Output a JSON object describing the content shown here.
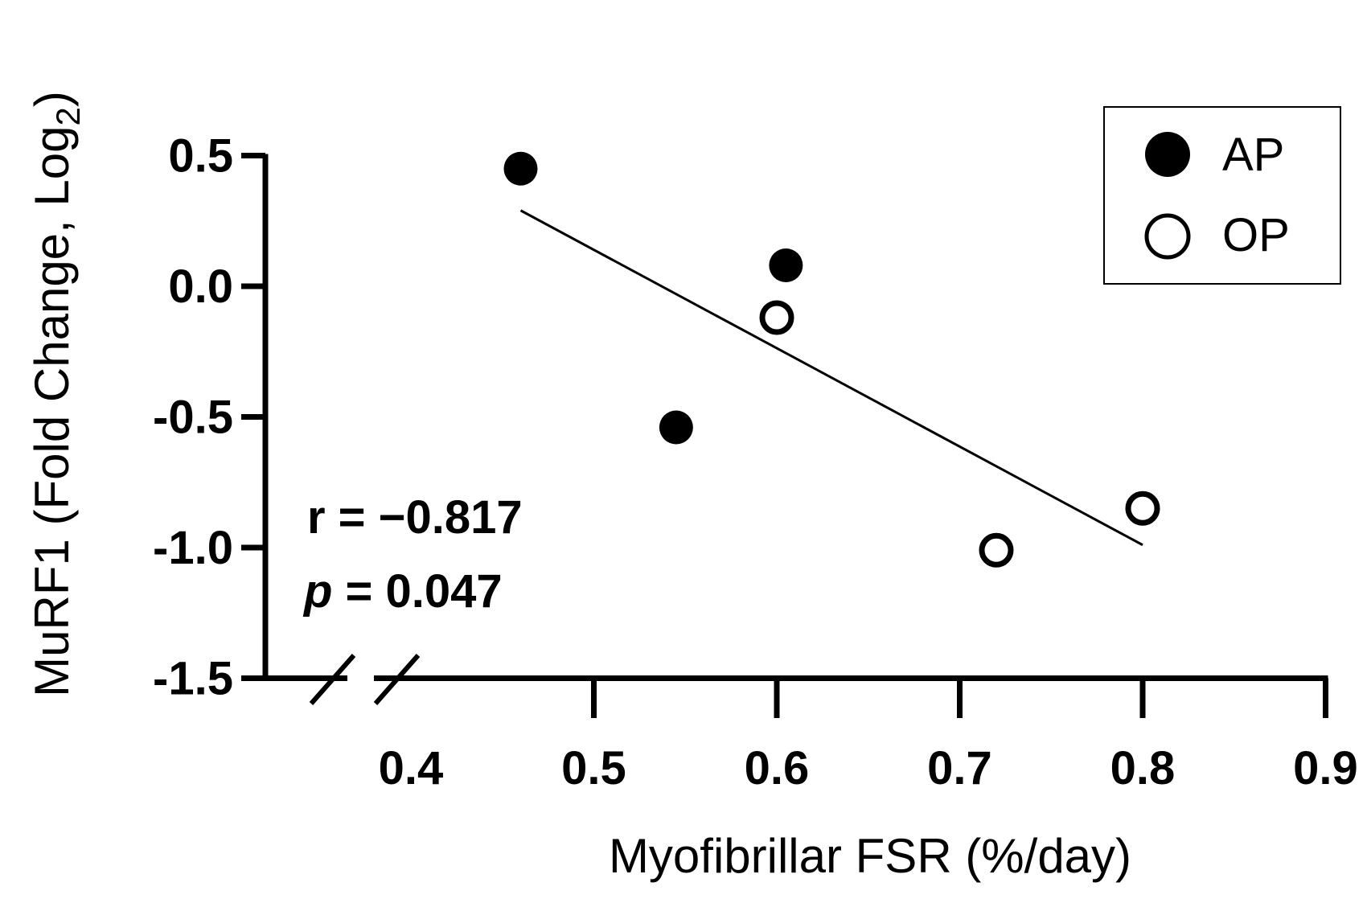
{
  "chart_data": {
    "type": "scatter",
    "xlabel": "Myofibrillar FSR (%/day)",
    "ylabel_main": "MuRF1 (Fold Change, Log",
    "ylabel_sub": "2",
    "ylabel_close": ")",
    "xlim": [
      0.35,
      0.9
    ],
    "ylim": [
      -1.5,
      0.5
    ],
    "x_ticks": [
      "0.4",
      "0.5",
      "0.6",
      "0.7",
      "0.8",
      "0.9"
    ],
    "x_tick_values": [
      0.4,
      0.5,
      0.6,
      0.7,
      0.8,
      0.9
    ],
    "y_ticks": [
      "0.5",
      "0.0",
      "-0.5",
      "-1.0",
      "-1.5"
    ],
    "y_tick_values": [
      0.5,
      0.0,
      -0.5,
      -1.0,
      -1.5
    ],
    "axis_break": true,
    "grid": false,
    "legend_position": "top-right",
    "series": [
      {
        "name": "AP",
        "marker": "filled-circle",
        "points": [
          {
            "x": 0.46,
            "y": 0.45
          },
          {
            "x": 0.605,
            "y": 0.08
          },
          {
            "x": 0.545,
            "y": -0.54
          }
        ]
      },
      {
        "name": "OP",
        "marker": "open-circle",
        "points": [
          {
            "x": 0.6,
            "y": -0.12
          },
          {
            "x": 0.72,
            "y": -1.01
          },
          {
            "x": 0.8,
            "y": -0.85
          }
        ]
      }
    ],
    "trendline": {
      "x1": 0.46,
      "y1": 0.29,
      "x2": 0.8,
      "y2": -0.99
    },
    "stats": {
      "r_label": "r = −0.817",
      "p_symbol": "p",
      "p_rest": " = 0.047"
    }
  },
  "colors": {
    "ink": "#000000",
    "background": "#ffffff"
  }
}
